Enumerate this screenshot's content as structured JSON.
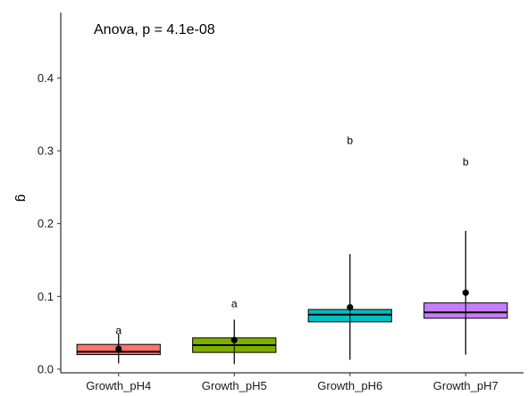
{
  "chart_data": {
    "type": "boxplot",
    "title": "",
    "annotation": "Anova, p = 4.1e-08",
    "xlabel": "",
    "ylabel": "g",
    "ylim": [
      -0.005,
      0.49
    ],
    "yticks": [
      0.0,
      0.1,
      0.2,
      0.3,
      0.4
    ],
    "ytick_labels": [
      "0.0",
      "0.1",
      "0.2",
      "0.3",
      "0.4"
    ],
    "categories": [
      "Growth_pH4",
      "Growth_pH5",
      "Growth_pH6",
      "Growth_pH7"
    ],
    "boxes": [
      {
        "category": "Growth_pH4",
        "q1": 0.02,
        "median": 0.024,
        "q3": 0.034,
        "mean": 0.028,
        "whisker_low": 0.008,
        "whisker_high": 0.048,
        "letter": "a",
        "letter_y": 0.053,
        "color": "#F8766D"
      },
      {
        "category": "Growth_pH5",
        "q1": 0.023,
        "median": 0.033,
        "q3": 0.043,
        "mean": 0.04,
        "whisker_low": 0.007,
        "whisker_high": 0.068,
        "letter": "a",
        "letter_y": 0.09,
        "color": "#7CAE00"
      },
      {
        "category": "Growth_pH6",
        "q1": 0.065,
        "median": 0.075,
        "q3": 0.082,
        "mean": 0.085,
        "whisker_low": 0.013,
        "whisker_high": 0.158,
        "letter": "b",
        "letter_y": 0.314,
        "color": "#00BFC4"
      },
      {
        "category": "Growth_pH7",
        "q1": 0.07,
        "median": 0.078,
        "q3": 0.091,
        "mean": 0.105,
        "whisker_low": 0.02,
        "whisker_high": 0.19,
        "letter": "b",
        "letter_y": 0.285,
        "color": "#C77CFF"
      }
    ],
    "grid": false,
    "legend": "none"
  }
}
